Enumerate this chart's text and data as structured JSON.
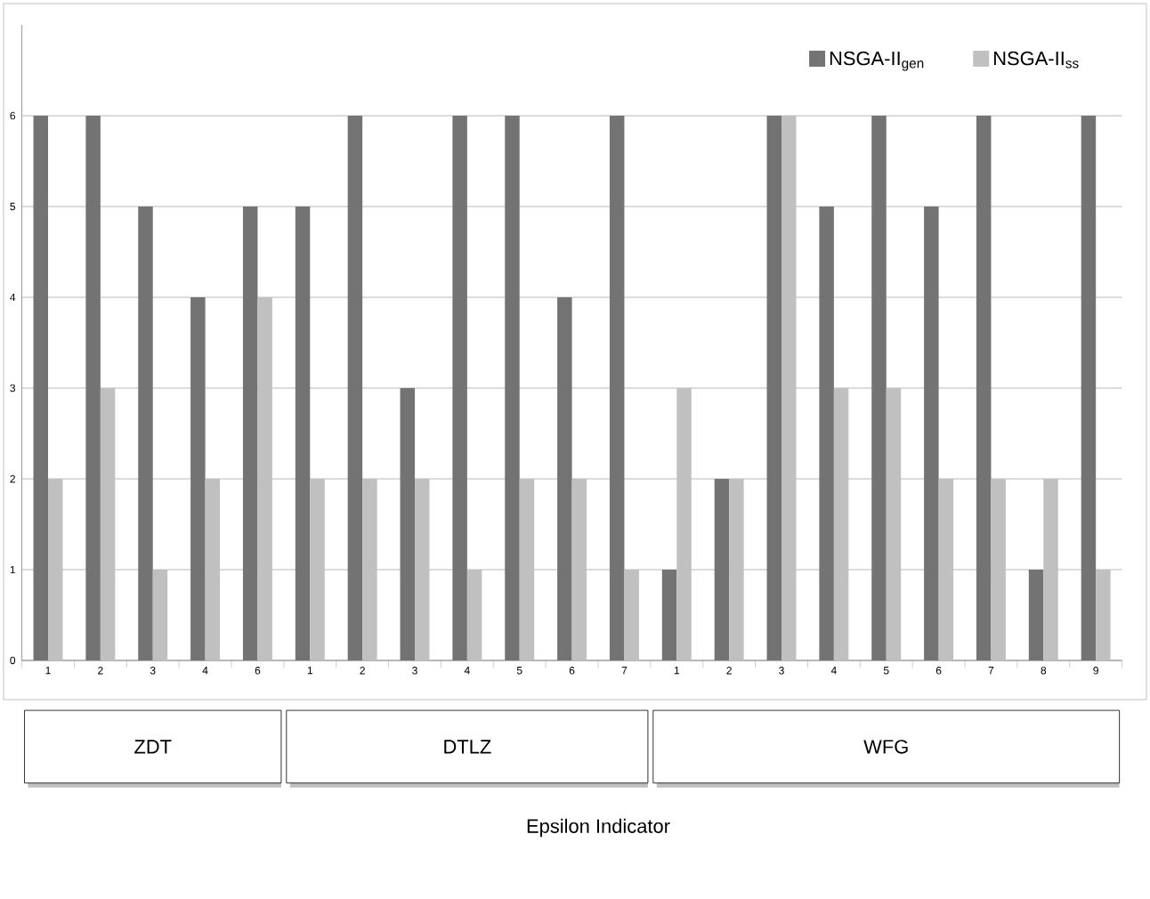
{
  "chart_data": {
    "type": "bar",
    "categories": [
      "1",
      "2",
      "3",
      "4",
      "6",
      "1",
      "2",
      "3",
      "4",
      "5",
      "6",
      "7",
      "1",
      "2",
      "3",
      "4",
      "5",
      "6",
      "7",
      "8",
      "9"
    ],
    "series": [
      {
        "name": "NSGA-II$_{gen}$",
        "color": "#737373",
        "values": [
          6,
          6,
          5,
          4,
          5,
          5,
          6,
          3,
          6,
          6,
          4,
          6,
          1,
          2,
          6,
          5,
          6,
          5,
          6,
          1,
          6
        ]
      },
      {
        "name": "NSGA-II$_{ss}$",
        "color": "#c0c0c0",
        "values": [
          2,
          3,
          1,
          2,
          4,
          2,
          2,
          2,
          1,
          2,
          2,
          1,
          3,
          2,
          6,
          3,
          3,
          2,
          2,
          2,
          1
        ]
      }
    ],
    "ylim": [
      0,
      7
    ],
    "yticks": [
      0,
      1,
      2,
      3,
      4,
      5,
      6
    ],
    "grid": "y",
    "legend": "top right",
    "annotations": [
      "ZDT",
      "DTLZ",
      "WFG",
      "Epsilon Indicator"
    ]
  }
}
